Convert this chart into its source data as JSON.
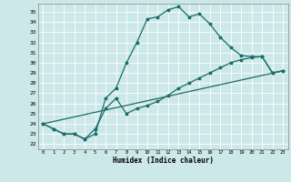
{
  "xlabel": "Humidex (Indice chaleur)",
  "background_color": "#cce8e8",
  "grid_color": "#ffffff",
  "line_color": "#1a6b6b",
  "xlim": [
    -0.5,
    23.5
  ],
  "ylim": [
    21.5,
    35.8
  ],
  "xticks": [
    0,
    1,
    2,
    3,
    4,
    5,
    6,
    7,
    8,
    9,
    10,
    11,
    12,
    13,
    14,
    15,
    16,
    17,
    18,
    19,
    20,
    21,
    22,
    23
  ],
  "yticks": [
    22,
    23,
    24,
    25,
    26,
    27,
    28,
    29,
    30,
    31,
    32,
    33,
    34,
    35
  ],
  "line1_x": [
    0,
    1,
    2,
    3,
    4,
    5,
    6,
    7,
    8,
    9,
    10,
    11,
    12,
    13,
    14,
    15,
    16,
    17,
    18,
    19,
    20,
    21,
    22,
    23
  ],
  "line1_y": [
    24.0,
    23.5,
    23.0,
    23.0,
    22.5,
    23.0,
    26.5,
    27.5,
    30.0,
    32.0,
    34.3,
    34.5,
    35.2,
    35.5,
    34.5,
    34.8,
    33.8,
    32.5,
    31.5,
    30.7,
    30.6,
    30.6,
    29.0,
    29.2
  ],
  "line2_x": [
    0,
    1,
    2,
    3,
    4,
    5,
    6,
    7,
    8,
    9,
    10,
    11,
    12,
    13,
    14,
    15,
    16,
    17,
    18,
    19,
    20,
    21,
    22,
    23
  ],
  "line2_y": [
    24.0,
    23.5,
    23.0,
    23.0,
    22.5,
    23.5,
    25.5,
    26.5,
    25.0,
    25.5,
    25.8,
    26.2,
    26.8,
    27.5,
    28.0,
    28.5,
    29.0,
    29.5,
    30.0,
    30.3,
    30.5,
    30.6,
    29.0,
    29.2
  ],
  "line3_x": [
    0,
    23
  ],
  "line3_y": [
    24.0,
    29.2
  ],
  "marker_size": 2.5,
  "linewidth": 0.9
}
